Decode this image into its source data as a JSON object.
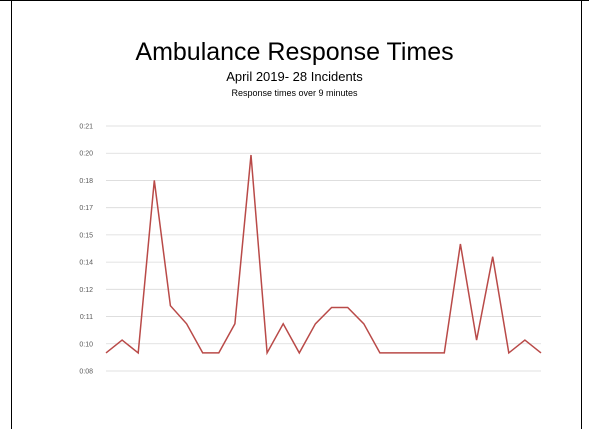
{
  "chart_data": {
    "type": "line",
    "title": "Ambulance Response Times",
    "subtitle": "April 2019- 28 Incidents",
    "subtitle2": "Response times over 9 minutes",
    "xlabel": "",
    "ylabel": "",
    "y_ticks": [
      "0:08",
      "0:10",
      "0:11",
      "0:12",
      "0:14",
      "0:15",
      "0:17",
      "0:18",
      "0:20",
      "0:21"
    ],
    "y_tick_values": [
      8,
      9.5,
      11,
      12.5,
      14,
      15.5,
      17,
      18.5,
      20,
      21.5
    ],
    "ylim": [
      8,
      21.5
    ],
    "grid": true,
    "legend": "none",
    "series": [
      {
        "color": "#b94a48",
        "values": [
          9,
          9.7,
          9,
          18.5,
          11.6,
          10.6,
          9,
          9,
          10.6,
          19.9,
          9,
          10.6,
          9,
          10.6,
          11.5,
          11.5,
          10.6,
          9,
          9,
          9,
          9,
          9,
          15,
          9.7,
          14.3,
          9,
          9.7,
          9
        ]
      }
    ]
  }
}
